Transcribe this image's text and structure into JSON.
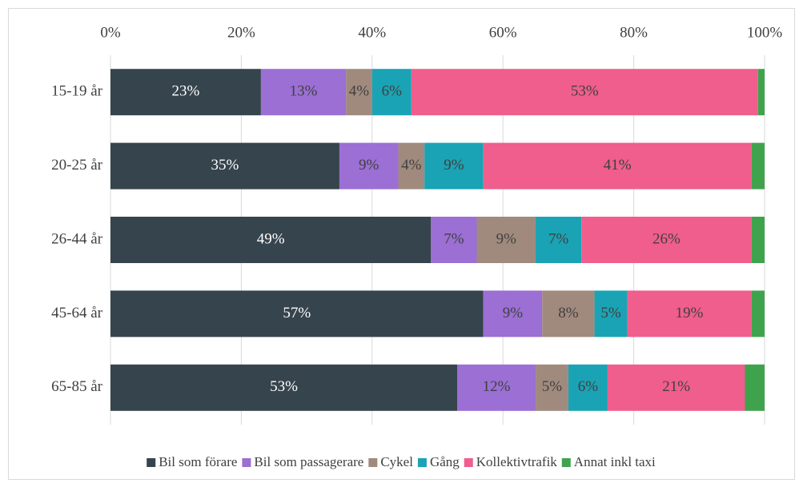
{
  "chart_data": {
    "type": "stacked-bar-horizontal",
    "categories": [
      "15-19 år",
      "20-25 år",
      "26-44 år",
      "45-64 år",
      "65-85 år"
    ],
    "series": [
      {
        "name": "Bil som förare",
        "color": "#36444d",
        "label_color": "#ffffff",
        "values": [
          23,
          35,
          49,
          57,
          53
        ],
        "value_labels": [
          "23%",
          "35%",
          "49%",
          "57%",
          "53%"
        ]
      },
      {
        "name": "Bil som passagerare",
        "color": "#9b6fd4",
        "label_color": "#404040",
        "values": [
          13,
          9,
          7,
          9,
          12
        ],
        "value_labels": [
          "13%",
          "9%",
          "7%",
          "9%",
          "12%"
        ]
      },
      {
        "name": "Cykel",
        "color": "#a08a7e",
        "label_color": "#404040",
        "values": [
          4,
          4,
          9,
          8,
          5
        ],
        "value_labels": [
          "4%",
          "4%",
          "9%",
          "8%",
          "5%"
        ]
      },
      {
        "name": "Gång",
        "color": "#1aa3b4",
        "label_color": "#404040",
        "values": [
          6,
          9,
          7,
          5,
          6
        ],
        "value_labels": [
          "6%",
          "9%",
          "7%",
          "5%",
          "6%"
        ]
      },
      {
        "name": "Kollektivtrafik",
        "color": "#ef5e8c",
        "label_color": "#404040",
        "values": [
          53,
          41,
          26,
          19,
          21
        ],
        "value_labels": [
          "53%",
          "41%",
          "26%",
          "19%",
          "21%"
        ]
      },
      {
        "name": "Annat inkl taxi",
        "color": "#3fa34d",
        "values": [
          1,
          2,
          2,
          2,
          3
        ]
      }
    ],
    "xlim": [
      0,
      100
    ],
    "xticks": [
      {
        "value": 0,
        "label": "0%"
      },
      {
        "value": 20,
        "label": "20%"
      },
      {
        "value": 40,
        "label": "40%"
      },
      {
        "value": 60,
        "label": "60%"
      },
      {
        "value": 80,
        "label": "80%"
      },
      {
        "value": 100,
        "label": "100%"
      }
    ],
    "grid": true,
    "legend": "bottom"
  }
}
